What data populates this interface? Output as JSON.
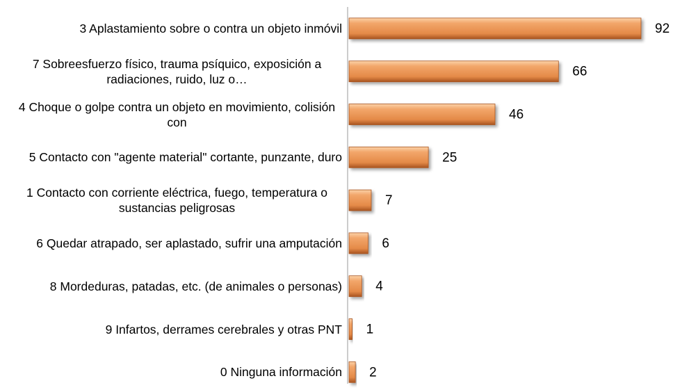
{
  "chart_data": {
    "type": "bar",
    "orientation": "horizontal",
    "categories": [
      "3 Aplastamiento sobre o contra un objeto inmóvil",
      "7 Sobreesfuerzo físico, trauma psíquico, exposición a radiaciones, ruido, luz o…",
      "4 Choque o golpe contra un objeto en movimiento, colisión con",
      "5 Contacto con \"agente material\" cortante, punzante, duro",
      "1 Contacto con corriente eléctrica, fuego, temperatura o sustancias peligrosas",
      "6 Quedar atrapado, ser aplastado, sufrir una amputación",
      "8 Mordeduras, patadas, etc. (de animales o personas)",
      "9 Infartos, derrames cerebrales y otras PNT",
      "0 Ninguna información"
    ],
    "values": [
      92,
      66,
      46,
      25,
      7,
      6,
      4,
      1,
      2
    ],
    "color": "#e48a48"
  }
}
